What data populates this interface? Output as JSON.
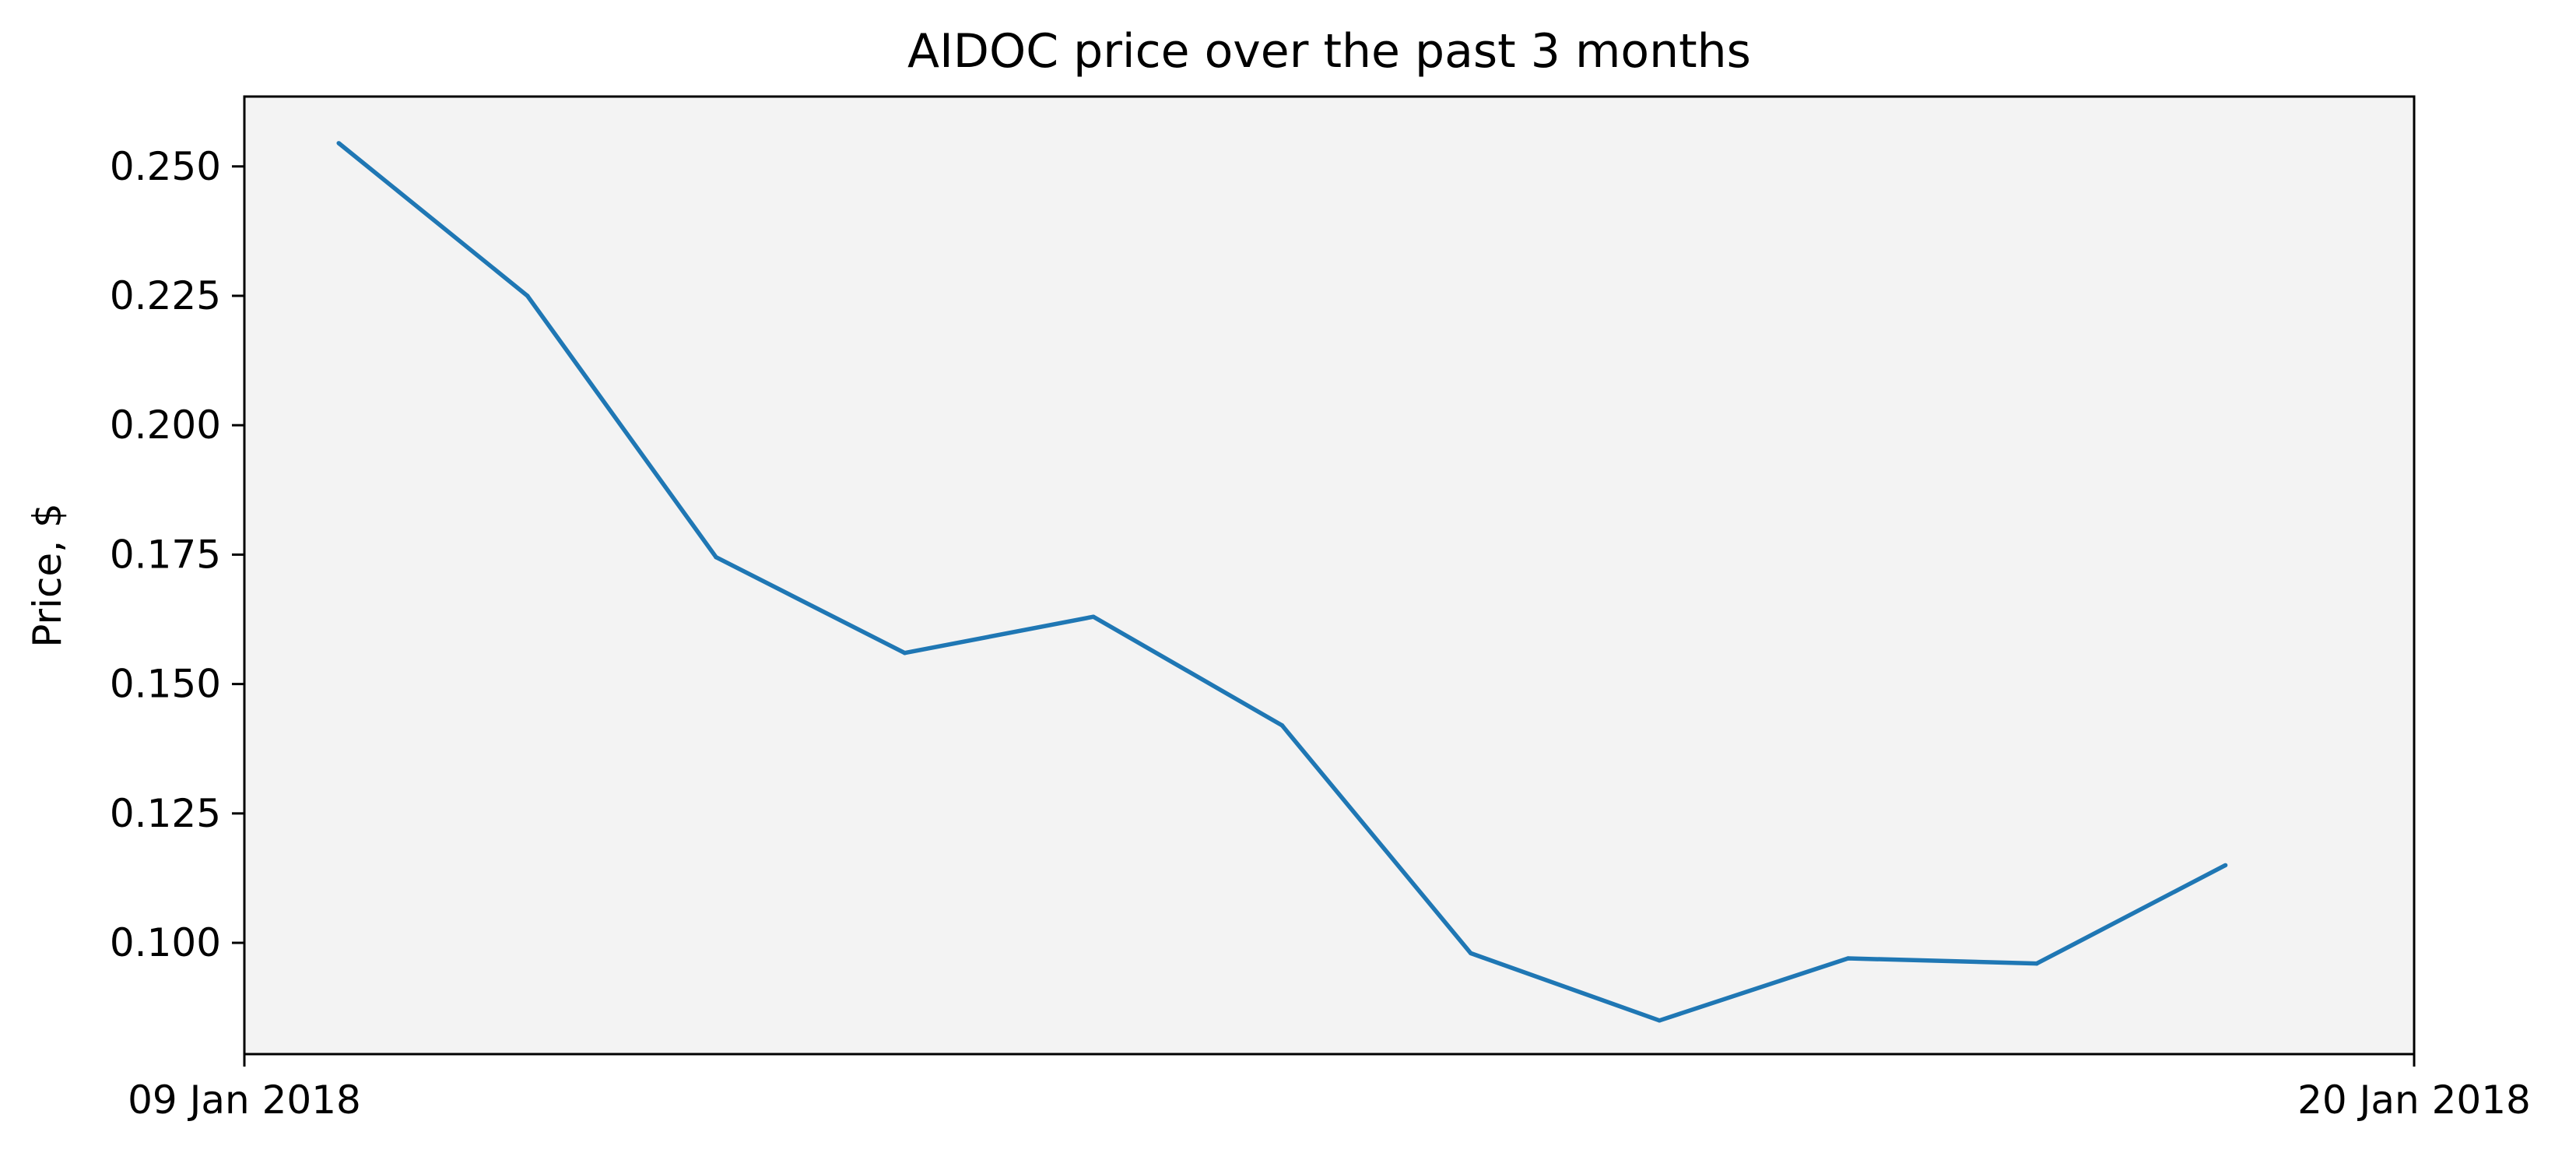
{
  "chart_data": {
    "type": "line",
    "title": "AIDOC price over the past 3 months",
    "xlabel": "",
    "ylabel": "Price, $",
    "x_tick_labels": [
      "09 Jan 2018",
      "20 Jan 2018"
    ],
    "y_ticks": [
      0.1,
      0.125,
      0.15,
      0.175,
      0.2,
      0.225,
      0.25
    ],
    "y_tick_labels": [
      "0.100",
      "0.125",
      "0.150",
      "0.175",
      "0.200",
      "0.225",
      "0.250"
    ],
    "ylim": [
      0.0785,
      0.2635
    ],
    "grid": false,
    "legend": "none",
    "plot_background": "#f3f3f3",
    "series": [
      {
        "color": "#1f77b4",
        "x": [
          "2018-01-09",
          "2018-01-10",
          "2018-01-11",
          "2018-01-12",
          "2018-01-13",
          "2018-01-14",
          "2018-01-15",
          "2018-01-16",
          "2018-01-17",
          "2018-01-18",
          "2018-01-19"
        ],
        "values": [
          0.2545,
          0.225,
          0.1745,
          0.156,
          0.163,
          0.142,
          0.098,
          0.085,
          0.097,
          0.096,
          0.115
        ]
      }
    ]
  }
}
